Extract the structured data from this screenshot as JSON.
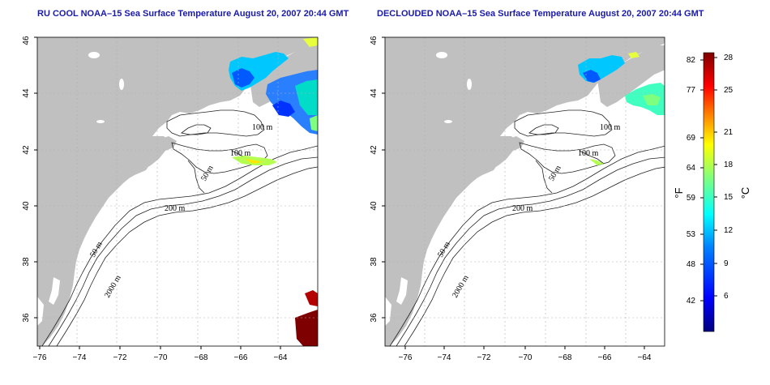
{
  "panels": [
    {
      "title": "RU COOL NOAA–15 Sea Surface Temperature August 20, 2007 20:44 GMT"
    },
    {
      "title": "DECLOUDED NOAA–15 Sea Surface Temperature August 20, 2007 20:44 GMT"
    }
  ],
  "map": {
    "lon_range": [
      -77,
      -63
    ],
    "lat_range": [
      35,
      46
    ],
    "lon_ticks": [
      "−76",
      "−74",
      "−72",
      "−70",
      "−68",
      "−66",
      "−64"
    ],
    "lat_ticks": [
      "36",
      "38",
      "40",
      "42",
      "44",
      "46"
    ],
    "land_color": "#c0c0c0",
    "contour_labels": {
      "c100a": "100 m",
      "c100b": "100 m",
      "c50a": "50 m",
      "c200": "200 m",
      "c50b": "50 m",
      "c2000": "2000 m"
    }
  },
  "colorbar": {
    "fahrenheit_unit": "°F",
    "celsius_unit": "°C",
    "fahrenheit_ticks": [
      "82",
      "77",
      "69",
      "64",
      "59",
      "53",
      "48",
      "42"
    ],
    "celsius_ticks": [
      "28",
      "25",
      "21",
      "18",
      "15",
      "12",
      "9",
      "6"
    ],
    "colors": [
      "#00007f",
      "#0000ff",
      "#007fff",
      "#00ffff",
      "#7fff7f",
      "#ffff00",
      "#ff7f00",
      "#ff0000",
      "#7f0000"
    ]
  }
}
